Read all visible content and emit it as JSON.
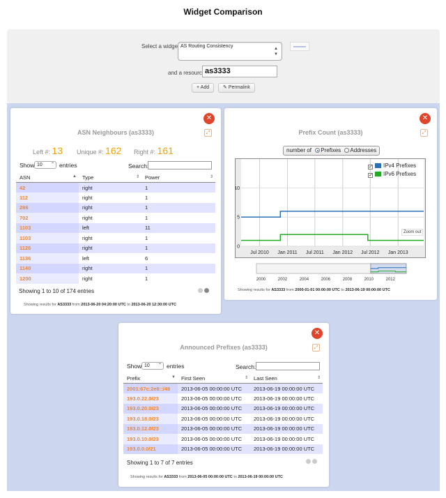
{
  "page": {
    "title": "Widget Comparison"
  },
  "selector": {
    "widget_label": "Select a widget",
    "widget_value": "AS Routing Consistency",
    "resource_label": "and a resource",
    "resource_value": "as3333",
    "add_label": "Add",
    "permalink_label": "Permalink"
  },
  "asn_widget": {
    "title": "ASN Neighbours (as3333)",
    "left_label": "Left #:",
    "left_value": "13",
    "unique_label": "Unique #:",
    "unique_value": "162",
    "right_label": "Right #:",
    "right_value": "161",
    "show_label": "Show",
    "length_value": "10",
    "entries_label": "entries",
    "search_label": "Search:",
    "columns": [
      "ASN",
      "Type",
      "Power"
    ],
    "rows": [
      [
        "42",
        "right",
        "1"
      ],
      [
        "112",
        "right",
        "1"
      ],
      [
        "286",
        "right",
        "1"
      ],
      [
        "702",
        "right",
        "1"
      ],
      [
        "1103",
        "left",
        "11"
      ],
      [
        "1103",
        "right",
        "1"
      ],
      [
        "1126",
        "right",
        "1"
      ],
      [
        "1136",
        "left",
        "6"
      ],
      [
        "1140",
        "right",
        "1"
      ],
      [
        "1200",
        "right",
        "1"
      ]
    ],
    "info": "Showing 1 to 10 of 174 entries",
    "footer_prefix": "Showing results for",
    "footer_resource": "AS3333",
    "footer_from": "from",
    "footer_start": "2013-06-20 04:20:00 UTC",
    "footer_to": "to",
    "footer_end": "2013-06-20 12:30:00 UTC"
  },
  "prefix_count_widget": {
    "title": "Prefix Count (as3333)",
    "toggle_label": "number of",
    "option_prefixes": "Prefixes",
    "option_addresses": "Addresses",
    "selected_option": "Prefixes",
    "zoom_out": "Zoom out",
    "footer_prefix": "Showing results for",
    "footer_resource": "AS3333",
    "footer_from": "from",
    "footer_start": "2000-01-01 00:00:00 UTC",
    "footer_to": "to",
    "footer_end": "2013-06-19 00:00:00 UTC"
  },
  "chart_data": {
    "type": "line",
    "title": "",
    "xlabel": "",
    "ylabel": "",
    "y_ticks": [
      0,
      5,
      10
    ],
    "ylim": [
      0,
      14
    ],
    "xlim": [
      "2010-03-01",
      "2013-06-19"
    ],
    "x_ticks": [
      "Jul 2010",
      "Jan 2011",
      "Jul 2011",
      "Jan 2012",
      "Jul 2012",
      "Jan 2013"
    ],
    "legend_position": "top-right",
    "grid": true,
    "series": [
      {
        "name": "IPv4 Prefixes",
        "color": "#2b6fb5",
        "points": [
          [
            "2010-03-01",
            5
          ],
          [
            "2010-11-15",
            5
          ],
          [
            "2010-11-15",
            6
          ],
          [
            "2013-06-19",
            6
          ]
        ]
      },
      {
        "name": "IPv6 Prefixes",
        "color": "#22aa22",
        "points": [
          [
            "2010-03-01",
            1
          ],
          [
            "2010-11-15",
            1
          ],
          [
            "2010-11-15",
            2
          ],
          [
            "2012-06-15",
            2
          ],
          [
            "2012-06-15",
            1
          ],
          [
            "2013-06-19",
            1
          ]
        ]
      }
    ],
    "navigator_ticks": [
      "2000",
      "2002",
      "2004",
      "2006",
      "2008",
      "2010",
      "2012"
    ]
  },
  "prefixes_widget": {
    "title": "Announced Prefixes (as3333)",
    "show_label": "Show",
    "length_value": "10",
    "entries_label": "entries",
    "search_label": "Search:",
    "columns": [
      "Prefix",
      "First Seen",
      "Last Seen"
    ],
    "rows": [
      [
        "2001:67c:2e8::/48",
        "2013-06-05 00:00:00 UTC",
        "2013-06-19 00:00:00 UTC"
      ],
      [
        "193.0.22.0/23",
        "2013-06-05 00:00:00 UTC",
        "2013-06-19 00:00:00 UTC"
      ],
      [
        "193.0.20.0/23",
        "2013-06-05 00:00:00 UTC",
        "2013-06-19 00:00:00 UTC"
      ],
      [
        "193.0.18.0/23",
        "2013-06-05 00:00:00 UTC",
        "2013-06-19 00:00:00 UTC"
      ],
      [
        "193.0.12.0/23",
        "2013-06-05 00:00:00 UTC",
        "2013-06-19 00:00:00 UTC"
      ],
      [
        "193.0.10.0/23",
        "2013-06-05 00:00:00 UTC",
        "2013-06-19 00:00:00 UTC"
      ],
      [
        "193.0.0.0/21",
        "2013-06-05 00:00:00 UTC",
        "2013-06-19 00:00:00 UTC"
      ]
    ],
    "info": "Showing 1 to 7 of 7 entries",
    "footer_prefix": "Showing results for",
    "footer_resource": "AS3333",
    "footer_from": "from",
    "footer_start": "2013-06-05 00:00:00 UTC",
    "footer_to": "to",
    "footer_end": "2013-06-19 00:00:00 UTC"
  }
}
